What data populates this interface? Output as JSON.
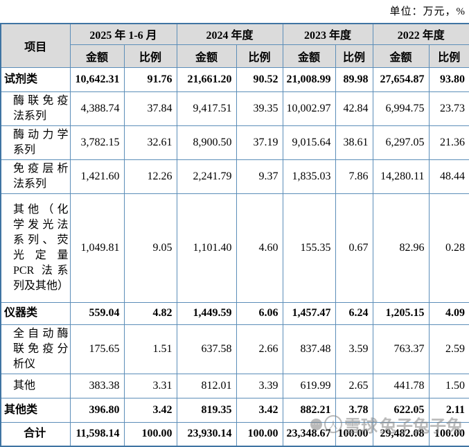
{
  "unit_label": "单位：万元，%",
  "watermark": {
    "brand": "雪球",
    "username": "兔子兔子兔"
  },
  "colors": {
    "border": "#5b8db8",
    "border_outer": "#3f74a3",
    "header_bg": "#dbdbdb",
    "text": "#000000"
  },
  "table": {
    "item_header": "项目",
    "col_groups": [
      {
        "label": "2025 年 1-6 月"
      },
      {
        "label": "2024 年度"
      },
      {
        "label": "2023 年度"
      },
      {
        "label": "2022 年度"
      }
    ],
    "sub_headers": {
      "amount": "金额",
      "ratio": "比例"
    },
    "rows": [
      {
        "label": "试剂类",
        "type": "category",
        "values": [
          "10,642.31",
          "91.76",
          "21,661.20",
          "90.52",
          "21,008.99",
          "89.98",
          "27,654.87",
          "93.80"
        ]
      },
      {
        "label": "酶联免疫法系列",
        "type": "sub",
        "values": [
          "4,388.74",
          "37.84",
          "9,417.51",
          "39.35",
          "10,002.97",
          "42.84",
          "6,994.75",
          "23.73"
        ]
      },
      {
        "label": "酶动力学系列",
        "type": "sub",
        "values": [
          "3,782.15",
          "32.61",
          "8,900.50",
          "37.19",
          "9,015.64",
          "38.61",
          "6,297.05",
          "21.36"
        ]
      },
      {
        "label": "免疫层析法系列",
        "type": "sub",
        "values": [
          "1,421.60",
          "12.26",
          "2,241.79",
          "9.37",
          "1,835.03",
          "7.86",
          "14,280.11",
          "48.44"
        ]
      },
      {
        "label": "其他（化学发光法系列、荧光定量 PCR 法系列及其他）",
        "type": "sub",
        "values": [
          "1,049.81",
          "9.05",
          "1,101.40",
          "4.60",
          "155.35",
          "0.67",
          "82.96",
          "0.28"
        ]
      },
      {
        "label": "仪器类",
        "type": "category",
        "values": [
          "559.04",
          "4.82",
          "1,449.59",
          "6.06",
          "1,457.47",
          "6.24",
          "1,205.15",
          "4.09"
        ]
      },
      {
        "label": "全自动酶联免疫分析仪",
        "type": "sub",
        "values": [
          "175.65",
          "1.51",
          "637.58",
          "2.66",
          "837.48",
          "3.59",
          "763.37",
          "2.59"
        ]
      },
      {
        "label": "其他",
        "type": "sub",
        "values": [
          "383.38",
          "3.31",
          "812.01",
          "3.39",
          "619.99",
          "2.65",
          "441.78",
          "1.50"
        ]
      },
      {
        "label": "其他类",
        "type": "category",
        "values": [
          "396.80",
          "3.42",
          "819.35",
          "3.42",
          "882.21",
          "3.78",
          "622.05",
          "2.11"
        ]
      },
      {
        "label": "合计",
        "type": "total",
        "values": [
          "11,598.14",
          "100.00",
          "23,930.14",
          "100.00",
          "23,348.67",
          "100.00",
          "29,482.08",
          "100.00"
        ]
      }
    ]
  }
}
